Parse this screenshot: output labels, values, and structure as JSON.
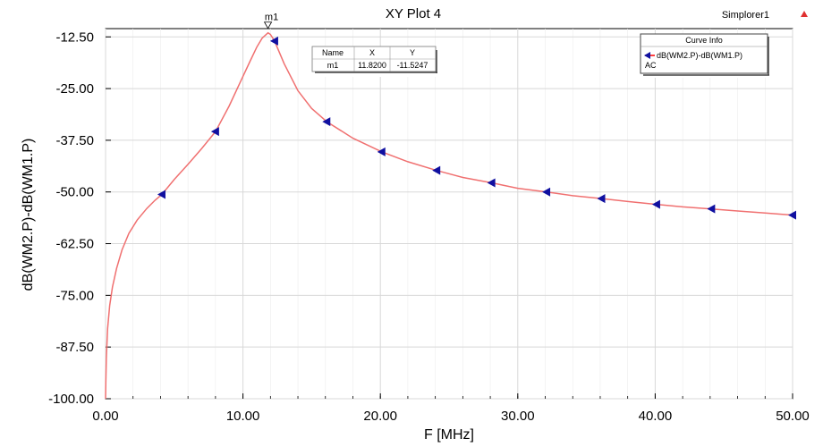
{
  "title": "XY Plot 4",
  "design_name": "Simplorer1",
  "design_icon": "warning-triangle-icon",
  "marker_table": {
    "headers": [
      "Name",
      "X",
      "Y"
    ],
    "rows": [
      [
        "m1",
        "11.8200",
        "-11.5247"
      ]
    ]
  },
  "legend": {
    "title": "Curve Info",
    "entries": [
      {
        "label": "dB(WM2.P)-dB(WM1.P)",
        "sub": "AC"
      }
    ]
  },
  "colors": {
    "curve": "#f07070",
    "marker": "#1010a0",
    "grid": "#d8d8d8",
    "legend_arrow": "#ff0000"
  },
  "chart_data": {
    "type": "line",
    "title": "XY Plot 4",
    "xlabel": "F [MHz]",
    "ylabel": "dB(WM2.P)-dB(WM1.P)",
    "xlim": [
      0,
      50
    ],
    "ylim": [
      -100,
      -10.5
    ],
    "grid": true,
    "legend_position": "top-right",
    "x_ticks": [
      "0.00",
      "10.00",
      "20.00",
      "30.00",
      "40.00",
      "50.00"
    ],
    "y_ticks": [
      "-12.50",
      "-25.00",
      "-37.50",
      "-50.00",
      "-62.50",
      "-75.00",
      "-87.50",
      "-100.00"
    ],
    "series": [
      {
        "name": "dB(WM2.P)-dB(WM1.P)",
        "x": [
          0.0,
          0.02,
          0.06,
          0.15,
          0.3,
          0.5,
          0.8,
          1.2,
          1.7,
          2.3,
          3.0,
          3.6,
          4.1,
          5.0,
          6.0,
          7.0,
          8.0,
          9.0,
          9.8,
          10.5,
          11.0,
          11.4,
          11.82,
          12.0,
          12.3,
          13.0,
          14.0,
          15.0,
          16.1,
          18.0,
          20.1,
          22.0,
          24.1,
          26.0,
          28.1,
          30.0,
          32.1,
          34.0,
          36.1,
          38.0,
          40.1,
          42.0,
          44.1,
          46.0,
          48.0,
          50.0
        ],
        "y": [
          -100.0,
          -96.0,
          -90.0,
          -83.0,
          -77.5,
          -73.0,
          -68.5,
          -64.0,
          -60.0,
          -56.8,
          -54.0,
          -52.0,
          -50.6,
          -47.0,
          -43.3,
          -39.5,
          -35.4,
          -29.2,
          -23.5,
          -18.5,
          -15.0,
          -12.8,
          -11.52,
          -11.9,
          -13.5,
          -19.0,
          -25.5,
          -29.8,
          -33.0,
          -37.0,
          -40.3,
          -42.7,
          -44.8,
          -46.5,
          -47.8,
          -49.1,
          -50.0,
          -50.9,
          -51.6,
          -52.3,
          -53.0,
          -53.6,
          -54.1,
          -54.6,
          -55.1,
          -55.6
        ]
      }
    ],
    "markers": {
      "x": [
        4.1,
        8.0,
        12.3,
        16.1,
        20.1,
        24.1,
        28.1,
        32.1,
        36.1,
        40.1,
        44.1,
        50.0
      ],
      "y": [
        -50.6,
        -35.4,
        -13.5,
        -33.0,
        -40.3,
        -44.8,
        -47.8,
        -50.0,
        -51.6,
        -53.0,
        -54.1,
        -55.6
      ]
    },
    "annotations": [
      {
        "label": "m1",
        "x": 11.82,
        "y": -11.5247
      }
    ]
  }
}
